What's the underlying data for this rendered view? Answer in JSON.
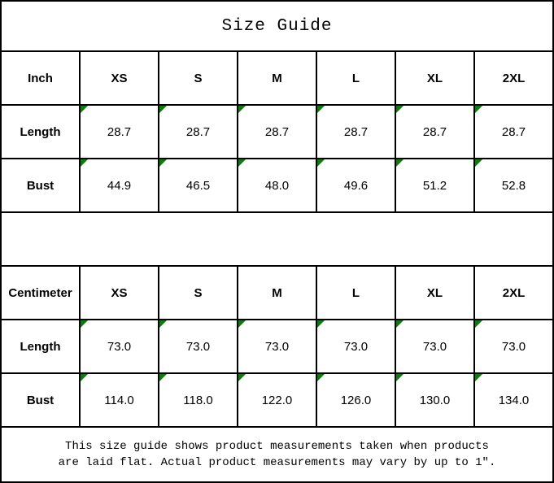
{
  "title": "Size Guide",
  "colors": {
    "marker_green": "#0a7d0a",
    "border_black": "#000000"
  },
  "inch_table": {
    "unit_label": "Inch",
    "sizes": [
      "XS",
      "S",
      "M",
      "L",
      "XL",
      "2XL"
    ],
    "rows": [
      {
        "label": "Length",
        "values": [
          "28.7",
          "28.7",
          "28.7",
          "28.7",
          "28.7",
          "28.7"
        ]
      },
      {
        "label": "Bust",
        "values": [
          "44.9",
          "46.5",
          "48.0",
          "49.6",
          "51.2",
          "52.8"
        ]
      }
    ]
  },
  "cm_table": {
    "unit_label": "Centimeter",
    "sizes": [
      "XS",
      "S",
      "M",
      "L",
      "XL",
      "2XL"
    ],
    "rows": [
      {
        "label": "Length",
        "values": [
          "73.0",
          "73.0",
          "73.0",
          "73.0",
          "73.0",
          "73.0"
        ]
      },
      {
        "label": "Bust",
        "values": [
          "114.0",
          "118.0",
          "122.0",
          "126.0",
          "130.0",
          "134.0"
        ]
      }
    ]
  },
  "footer": {
    "line1": "This size guide shows product measurements taken when products",
    "line2": "are laid flat. Actual product measurements may vary by up to 1″."
  }
}
